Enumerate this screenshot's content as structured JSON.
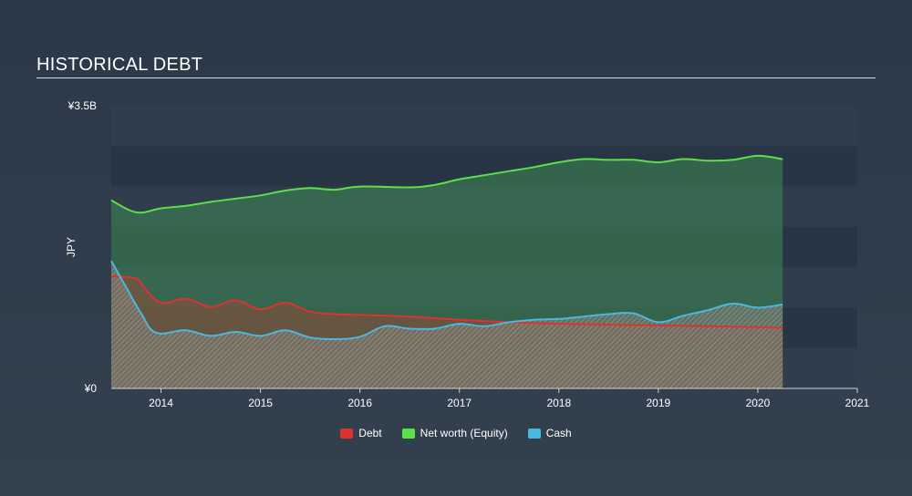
{
  "title": "HISTORICAL DEBT",
  "chart_data": {
    "type": "area",
    "title": "HISTORICAL DEBT",
    "ylabel": "JPY",
    "xlabel": "",
    "ylim": [
      0,
      3.5
    ],
    "xlim": [
      2013.5,
      2021.0
    ],
    "y_tick_labels": [
      {
        "value": 3.5,
        "label": "¥3.5B"
      },
      {
        "value": 0,
        "label": "¥0"
      }
    ],
    "x_ticks": [
      2014,
      2015,
      2016,
      2017,
      2018,
      2019,
      2020,
      2021
    ],
    "grid": true,
    "legend_position": "bottom-center",
    "series": [
      {
        "name": "Debt",
        "color": "#e03131",
        "values": [
          [
            2013.5,
            1.39
          ],
          [
            2013.75,
            1.36
          ],
          [
            2013.83,
            1.25
          ],
          [
            2014.0,
            1.06
          ],
          [
            2014.25,
            1.11
          ],
          [
            2014.5,
            1.01
          ],
          [
            2014.75,
            1.09
          ],
          [
            2015.0,
            0.98
          ],
          [
            2015.25,
            1.06
          ],
          [
            2015.5,
            0.95
          ],
          [
            2015.75,
            0.92
          ],
          [
            2016.0,
            0.91
          ],
          [
            2016.5,
            0.89
          ],
          [
            2017.0,
            0.85
          ],
          [
            2017.5,
            0.82
          ],
          [
            2018.0,
            0.8
          ],
          [
            2018.5,
            0.79
          ],
          [
            2019.0,
            0.78
          ],
          [
            2019.5,
            0.77
          ],
          [
            2020.0,
            0.76
          ],
          [
            2020.25,
            0.75
          ]
        ]
      },
      {
        "name": "Net worth (Equity)",
        "color": "#5ce049",
        "values": [
          [
            2013.5,
            2.33
          ],
          [
            2013.75,
            2.18
          ],
          [
            2014.0,
            2.23
          ],
          [
            2014.25,
            2.26
          ],
          [
            2014.5,
            2.31
          ],
          [
            2014.75,
            2.35
          ],
          [
            2015.0,
            2.39
          ],
          [
            2015.25,
            2.45
          ],
          [
            2015.5,
            2.48
          ],
          [
            2015.75,
            2.46
          ],
          [
            2016.0,
            2.5
          ],
          [
            2016.5,
            2.49
          ],
          [
            2016.75,
            2.52
          ],
          [
            2017.0,
            2.59
          ],
          [
            2017.25,
            2.64
          ],
          [
            2017.5,
            2.69
          ],
          [
            2017.75,
            2.74
          ],
          [
            2018.0,
            2.8
          ],
          [
            2018.25,
            2.84
          ],
          [
            2018.5,
            2.83
          ],
          [
            2018.75,
            2.83
          ],
          [
            2019.0,
            2.8
          ],
          [
            2019.25,
            2.84
          ],
          [
            2019.5,
            2.82
          ],
          [
            2019.75,
            2.83
          ],
          [
            2020.0,
            2.88
          ],
          [
            2020.25,
            2.84
          ]
        ]
      },
      {
        "name": "Cash",
        "color": "#4ab8e0",
        "values": [
          [
            2013.5,
            1.58
          ],
          [
            2013.65,
            1.25
          ],
          [
            2013.8,
            0.93
          ],
          [
            2013.95,
            0.69
          ],
          [
            2014.25,
            0.72
          ],
          [
            2014.5,
            0.65
          ],
          [
            2014.75,
            0.7
          ],
          [
            2015.0,
            0.65
          ],
          [
            2015.25,
            0.72
          ],
          [
            2015.5,
            0.63
          ],
          [
            2015.75,
            0.61
          ],
          [
            2016.0,
            0.64
          ],
          [
            2016.25,
            0.77
          ],
          [
            2016.5,
            0.74
          ],
          [
            2016.75,
            0.74
          ],
          [
            2017.0,
            0.8
          ],
          [
            2017.25,
            0.77
          ],
          [
            2017.5,
            0.82
          ],
          [
            2017.75,
            0.85
          ],
          [
            2018.0,
            0.86
          ],
          [
            2018.25,
            0.89
          ],
          [
            2018.5,
            0.92
          ],
          [
            2018.75,
            0.93
          ],
          [
            2019.0,
            0.82
          ],
          [
            2019.25,
            0.9
          ],
          [
            2019.5,
            0.97
          ],
          [
            2019.75,
            1.05
          ],
          [
            2020.0,
            1.0
          ],
          [
            2020.25,
            1.04
          ]
        ]
      }
    ]
  }
}
